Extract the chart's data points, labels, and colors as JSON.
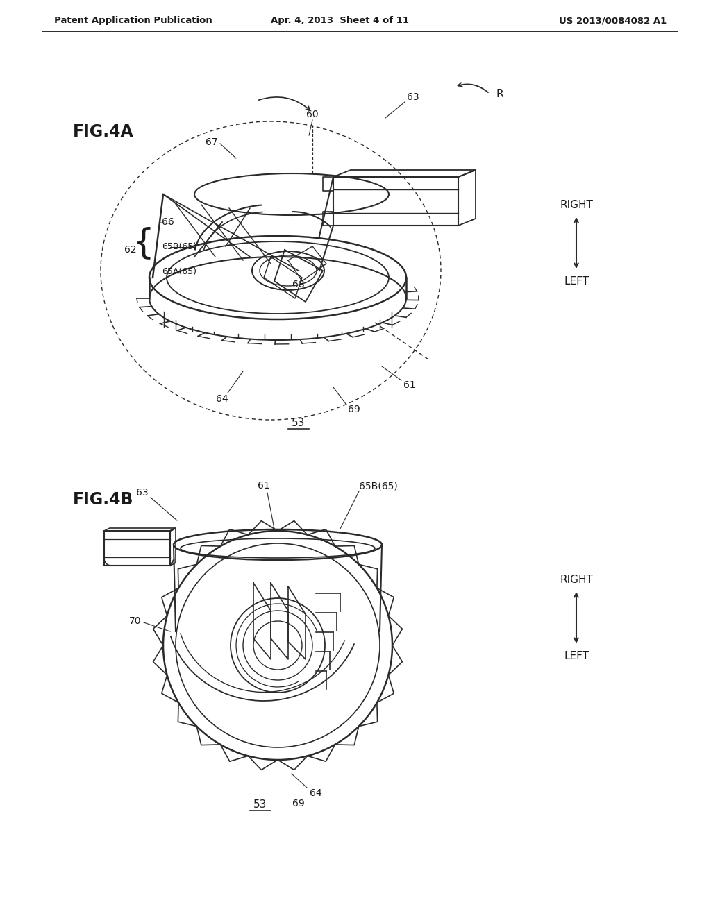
{
  "background_color": "#ffffff",
  "header_left": "Patent Application Publication",
  "header_center": "Apr. 4, 2013  Sheet 4 of 11",
  "header_right": "US 2013/0084082 A1",
  "fig4a_label": "FIG.4A",
  "fig4b_label": "FIG.4B",
  "line_color": "#2a2a2a",
  "text_color": "#1a1a1a"
}
